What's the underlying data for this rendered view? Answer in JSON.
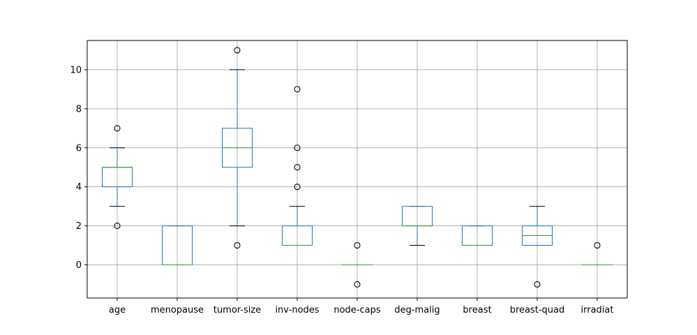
{
  "chart_data": {
    "type": "box",
    "title": "",
    "xlabel": "",
    "ylabel": "",
    "ylim": [
      -1.7,
      11.5
    ],
    "y_ticks": [
      0,
      2,
      4,
      6,
      8,
      10
    ],
    "grid": true,
    "colors": {
      "box": "#1f77b4",
      "median": "#2ca02c",
      "whisker": "#1f77b4",
      "cap": "#000000",
      "flier": "#000000",
      "grid": "#b0b0b0"
    },
    "categories": [
      "age",
      "menopause",
      "tumor-size",
      "inv-nodes",
      "node-caps",
      "deg-malig",
      "breast",
      "breast-quad",
      "irradiat"
    ],
    "boxes": [
      {
        "label": "age",
        "whisker_low": 3,
        "q1": 4,
        "median": 5,
        "q3": 5,
        "whisker_high": 6,
        "fliers": [
          2,
          7
        ]
      },
      {
        "label": "menopause",
        "whisker_low": 0,
        "q1": 0,
        "median": 0,
        "q3": 2,
        "whisker_high": 2,
        "fliers": []
      },
      {
        "label": "tumor-size",
        "whisker_low": 2,
        "q1": 5,
        "median": 6,
        "q3": 7,
        "whisker_high": 10,
        "fliers": [
          1,
          11
        ]
      },
      {
        "label": "inv-nodes",
        "whisker_low": 1,
        "q1": 1,
        "median": 1,
        "q3": 2,
        "whisker_high": 3,
        "fliers": [
          4,
          5,
          6,
          9
        ]
      },
      {
        "label": "node-caps",
        "whisker_low": 0,
        "q1": 0,
        "median": 0,
        "q3": 0,
        "whisker_high": 0,
        "fliers": [
          -1,
          1
        ]
      },
      {
        "label": "deg-malig",
        "whisker_low": 1,
        "q1": 2,
        "median": 2,
        "q3": 3,
        "whisker_high": 3,
        "fliers": []
      },
      {
        "label": "breast",
        "whisker_low": 1,
        "q1": 1,
        "median": 1,
        "q3": 2,
        "whisker_high": 2,
        "fliers": []
      },
      {
        "label": "breast-quad",
        "whisker_low": 1,
        "q1": 1,
        "median": 1.5,
        "q3": 2,
        "whisker_high": 3,
        "fliers": [
          -1
        ]
      },
      {
        "label": "irradiat",
        "whisker_low": 0,
        "q1": 0,
        "median": 0,
        "q3": 0,
        "whisker_high": 0,
        "fliers": [
          1
        ]
      }
    ]
  }
}
